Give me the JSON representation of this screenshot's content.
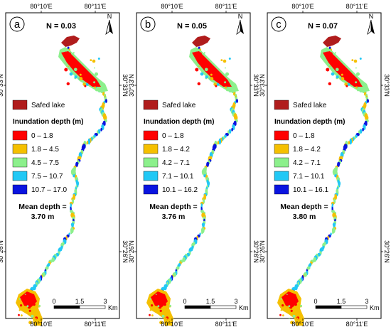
{
  "colors": {
    "lake": "#b01c1c",
    "class1": "#ff0000",
    "class2": "#f5c000",
    "class3": "#8cf08c",
    "class4": "#22c8f5",
    "class5": "#0a14e0",
    "frame": "#000000"
  },
  "panels": [
    {
      "label": "a",
      "n_label": "N = 0.03",
      "top_ticks": [
        "80°10'E",
        "80°11'E"
      ],
      "bottom_ticks": [
        "80°10'E",
        "80°11'E"
      ],
      "left_ticks": [
        "30°33'N",
        "30°26'N"
      ],
      "lake_label": "Safed lake",
      "legend_title": "Inundation depth (m)",
      "classes": [
        "0 – 1.8",
        "1.8 – 4.5",
        "4.5 – 7.5",
        "7.5 – 10.7",
        "10.7 – 17.0"
      ],
      "mean_line1": "Mean depth =",
      "mean_line2": "3.70 m",
      "scale_ticks": [
        "0",
        "1.5",
        "3"
      ],
      "scale_unit": "Km",
      "north": "N"
    },
    {
      "label": "b",
      "n_label": "N = 0.05",
      "top_ticks": [
        "80°10'E",
        "80°11'E"
      ],
      "bottom_ticks": [
        "80°10'E",
        "80°11'E"
      ],
      "left_ticks": [
        "30°33'N",
        "30°26'N"
      ],
      "lake_label": "Safed lake",
      "legend_title": "Inundation depth (m)",
      "classes": [
        "0 – 1.8",
        "1.8 – 4.2",
        "4.2 – 7.1",
        "7.1 – 10.1",
        "10.1 – 16.2"
      ],
      "mean_line1": "Mean depth =",
      "mean_line2": "3.76 m",
      "scale_ticks": [
        "0",
        "1.5",
        "3"
      ],
      "scale_unit": "Km",
      "north": "N"
    },
    {
      "label": "c",
      "n_label": "N = 0.07",
      "top_ticks": [
        "80°10'E",
        "80°11'E"
      ],
      "bottom_ticks": [
        "80°10'E",
        "80°11'E"
      ],
      "left_ticks": [
        "30°33'N",
        "30°26'N"
      ],
      "lake_label": "Safed lake",
      "legend_title": "Inundation depth (m)",
      "classes": [
        "0 – 1.8",
        "1.8 – 4.2",
        "4.2 – 7.1",
        "7.1 – 10.1",
        "10.1 – 16.1"
      ],
      "mean_line1": "Mean depth =",
      "mean_line2": "3.80 m",
      "scale_ticks": [
        "0",
        "1.5",
        "3"
      ],
      "scale_unit": "Km",
      "north": "N"
    }
  ]
}
